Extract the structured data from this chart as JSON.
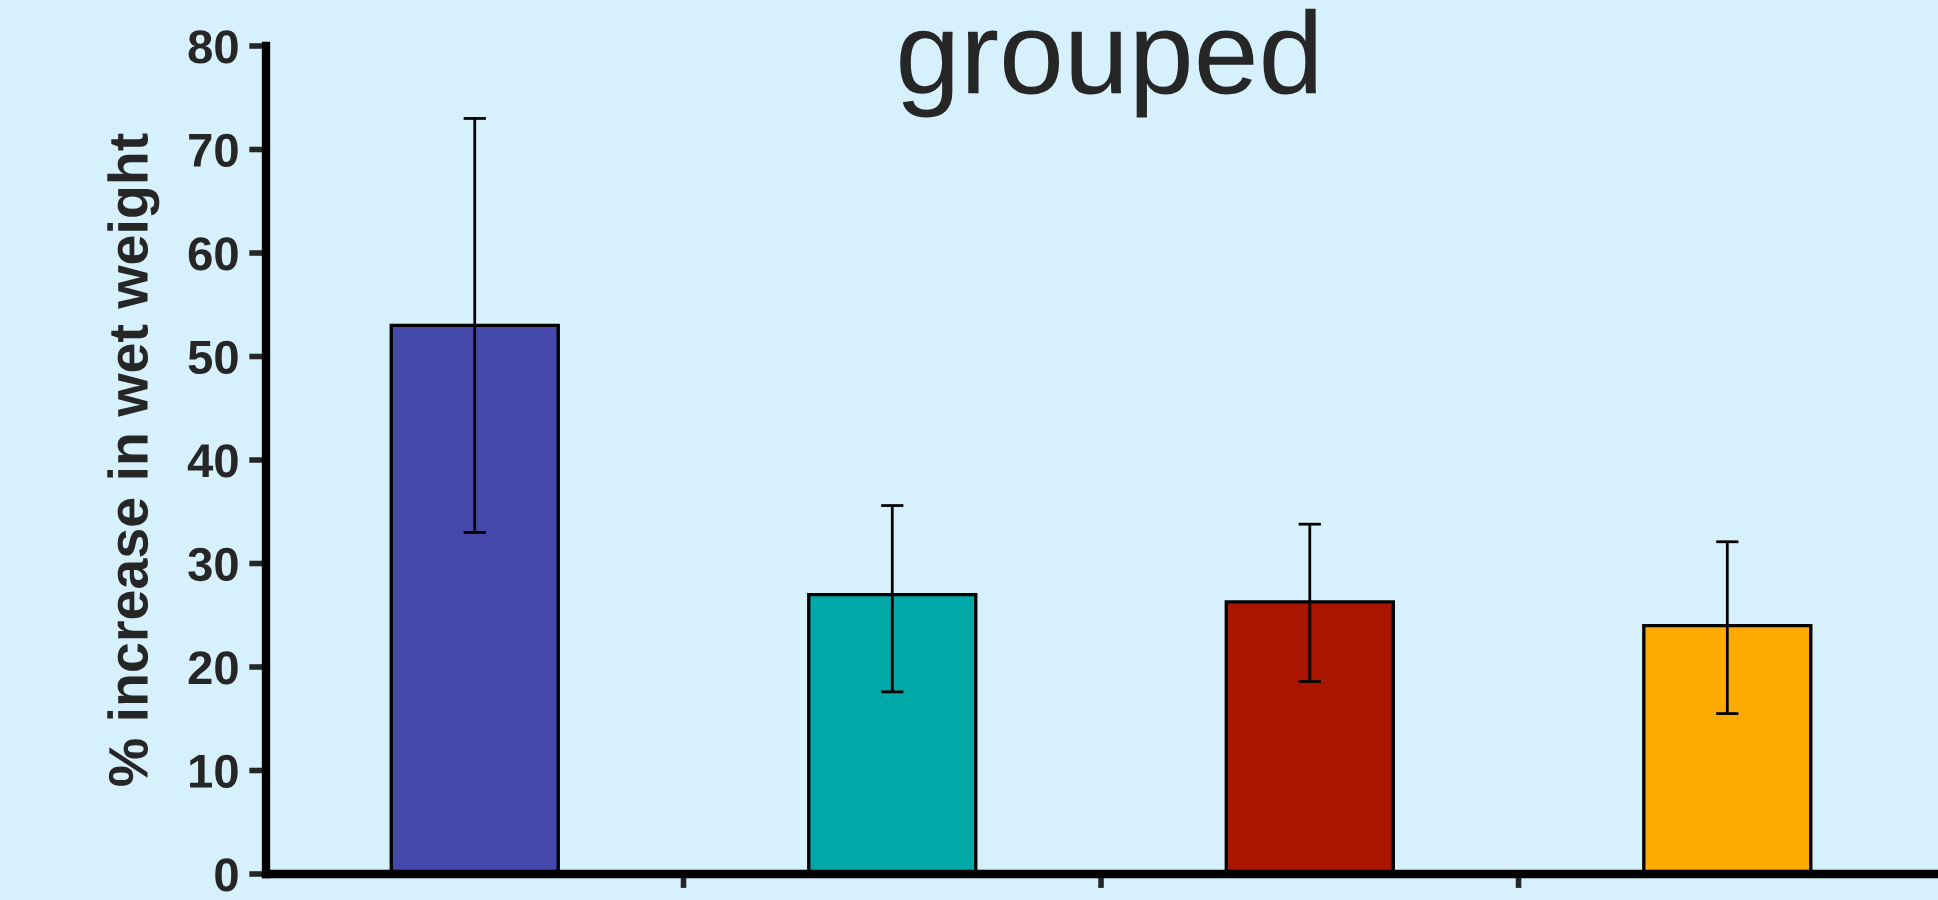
{
  "chart_data": {
    "type": "bar",
    "title": "grouped",
    "ylabel": "% increase in wet weight",
    "categories": [
      null,
      null,
      null,
      null
    ],
    "values": [
      53,
      27,
      26.3,
      24
    ],
    "colors": [
      "#4448aa",
      "#00a8a8",
      "#aa1500",
      "#ffaa00"
    ],
    "errors": [
      [
        33,
        73
      ],
      [
        17.6,
        35.6
      ],
      [
        18.6,
        33.8
      ],
      [
        15.5,
        32.1
      ]
    ],
    "ylim": [
      0,
      80
    ],
    "yticks": [
      0,
      10,
      20,
      30,
      40,
      50,
      60,
      70,
      80
    ],
    "grid": false,
    "legend": false
  }
}
